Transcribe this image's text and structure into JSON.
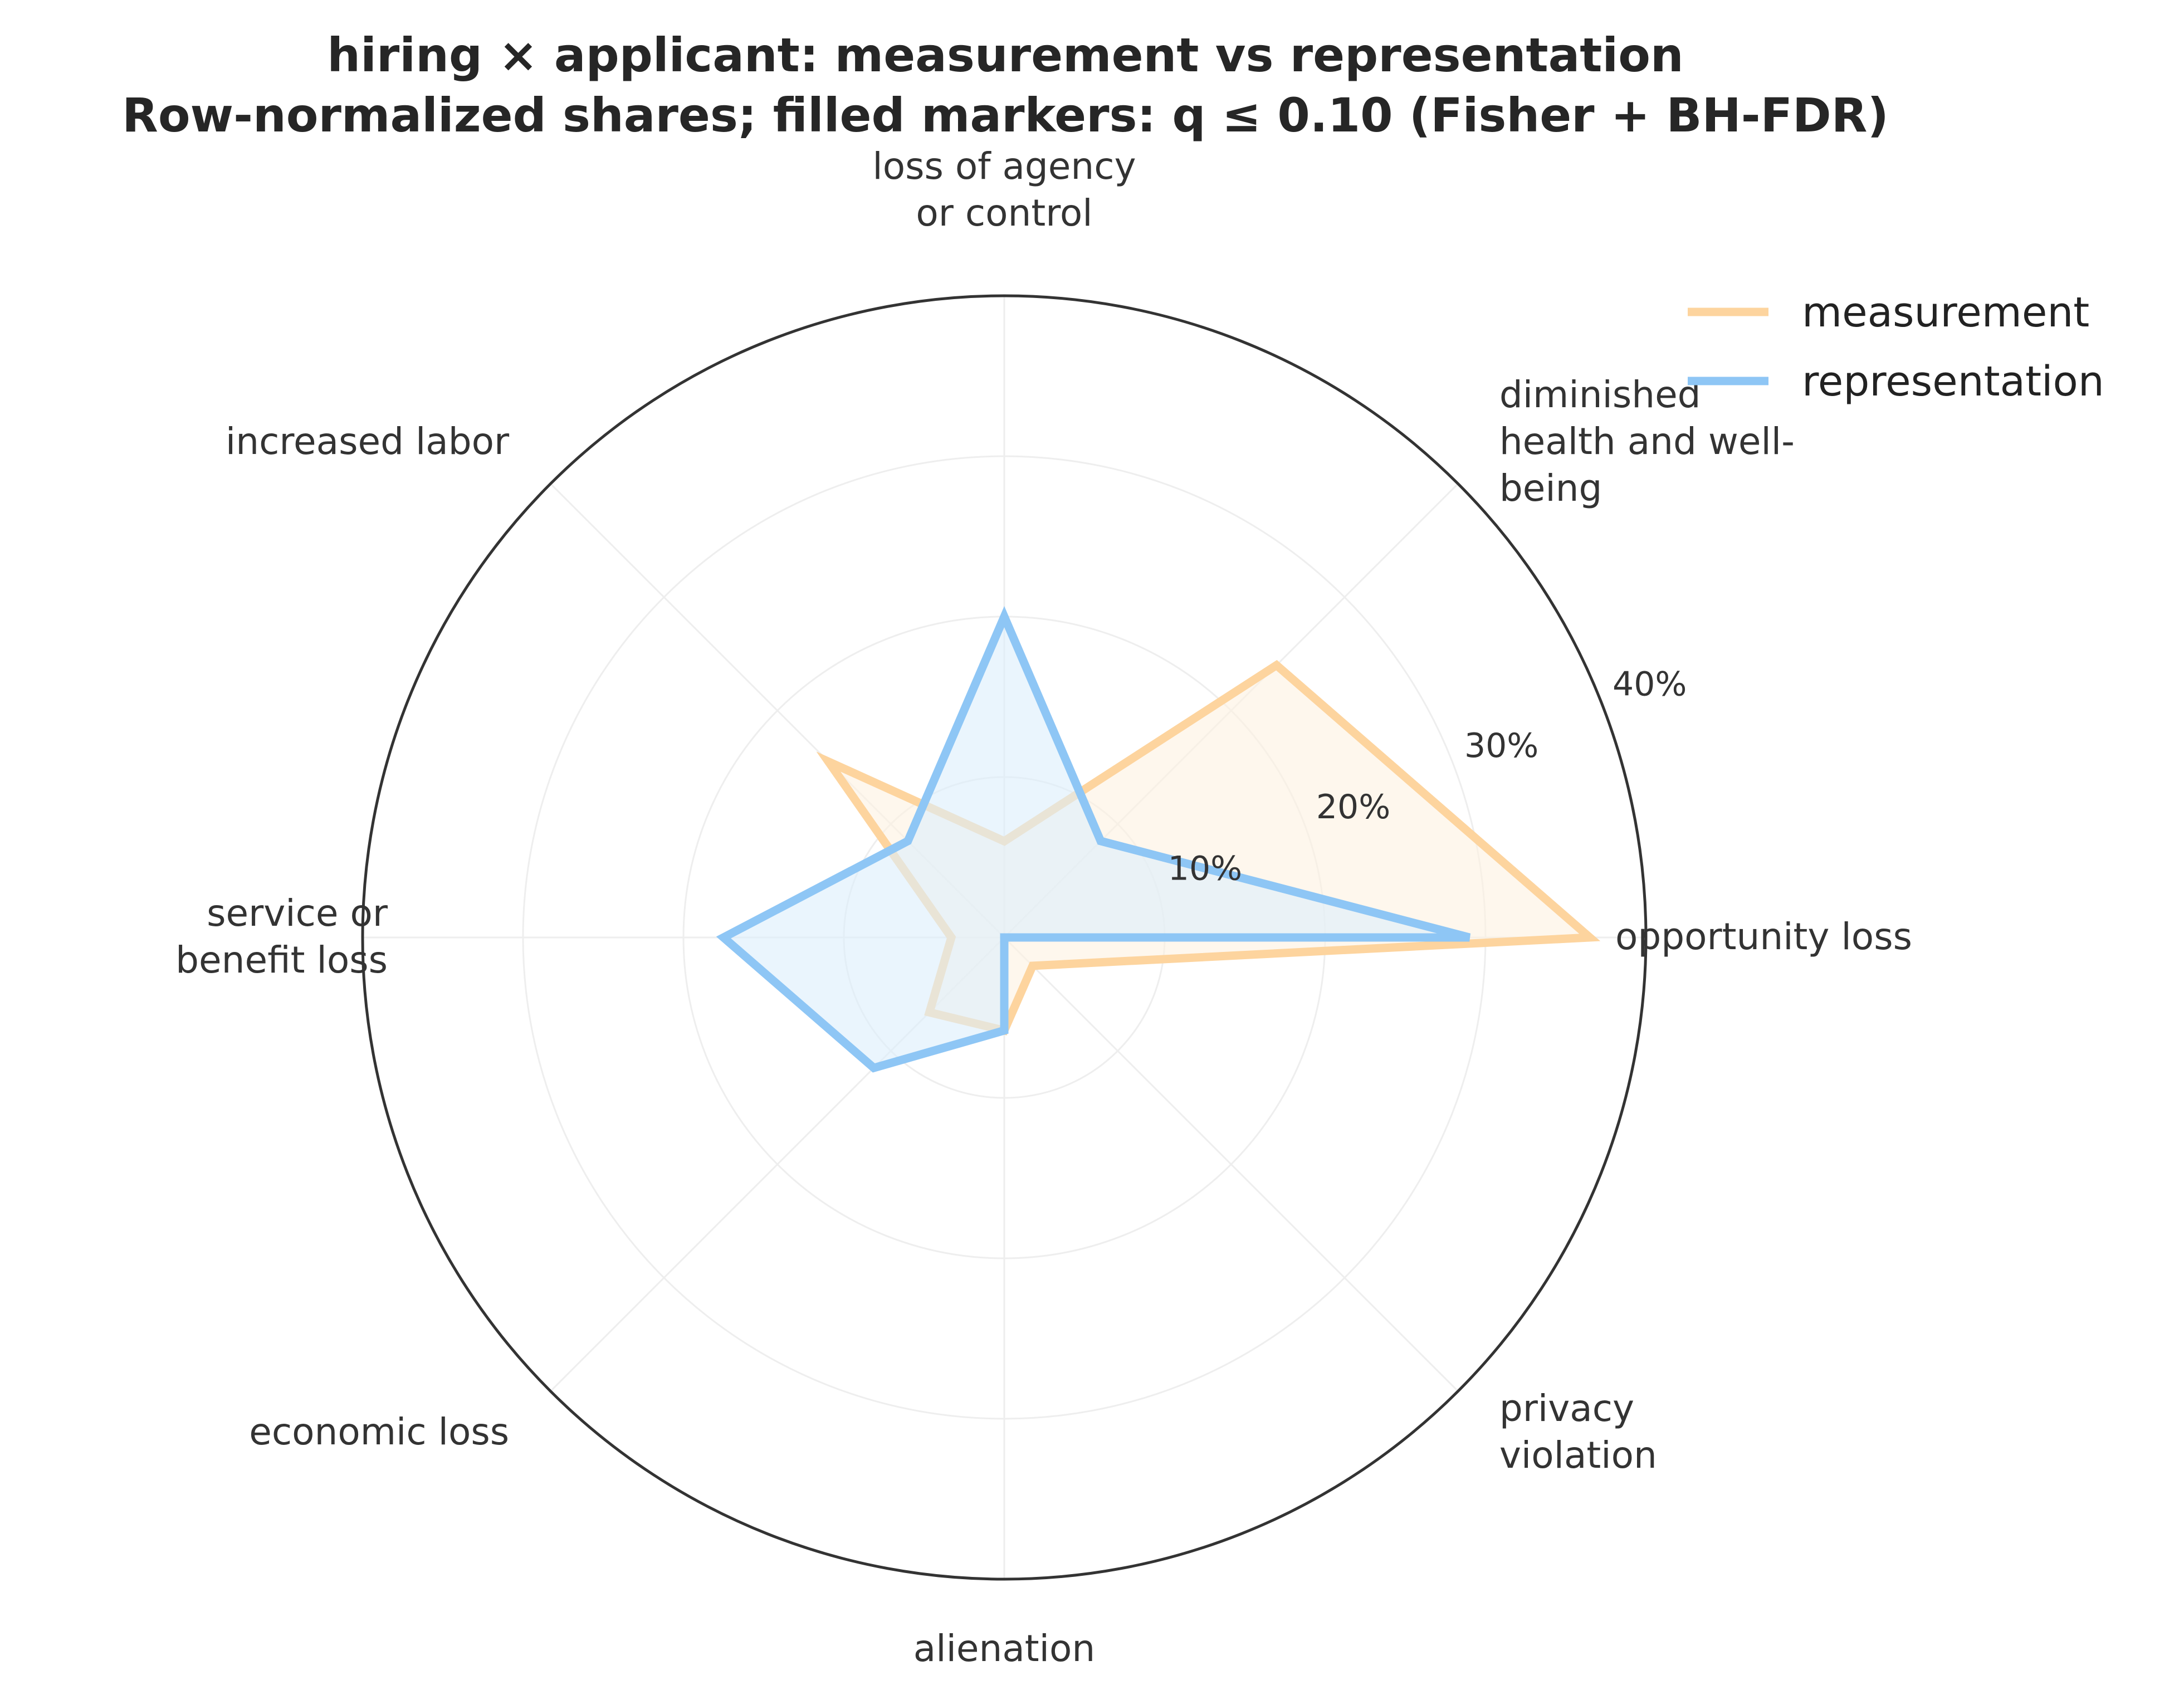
{
  "chart_data": {
    "type": "radar",
    "title": "hiring × applicant: measurement vs representation",
    "subtitle": "Row-normalized shares; filled markers: q ≤ 0.10 (Fisher + BH-FDR)",
    "categories": [
      [
        "opportunity loss"
      ],
      [
        "diminished",
        "health and well-",
        "being"
      ],
      [
        "loss of agency",
        "or control"
      ],
      [
        "increased labor"
      ],
      [
        "service or",
        "benefit loss"
      ],
      [
        "economic loss"
      ],
      [
        "alienation"
      ],
      [
        "privacy",
        "violation"
      ]
    ],
    "radial_ticks": [
      10,
      20,
      30,
      40
    ],
    "radial_tick_labels": [
      "10%",
      "20%",
      "30%",
      "40%"
    ],
    "rmax": 40,
    "grid": true,
    "legend_position": "top-right",
    "series": [
      {
        "name": "measurement",
        "color": "#FDD49E",
        "fill": "#FEF1E1",
        "values": [
          36.5,
          24,
          6,
          15.5,
          3.3,
          6.6,
          5.8,
          2.5
        ]
      },
      {
        "name": "representation",
        "color": "#8EC6F5",
        "fill": "#DCEEFC",
        "values": [
          29,
          8.5,
          20,
          8.5,
          17.5,
          11.5,
          5.8,
          0
        ]
      }
    ]
  }
}
